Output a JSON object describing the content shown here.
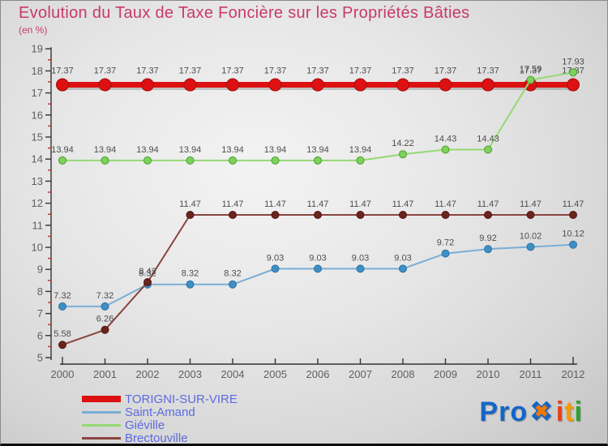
{
  "title": "Evolution du Taux de Taxe Foncière sur les Propriétés Bâties",
  "subtitle": "(en %)",
  "colors": {
    "title": "#c83a68",
    "legend_text": "#5b6be0",
    "axis": "#333333",
    "tick_label": "#5f5f5f",
    "minor_tick": "#bb3333",
    "value_label": "#4d4d4d"
  },
  "chart_data": {
    "type": "line",
    "title": "Evolution du Taux de Taxe Foncière sur les Propriétés Bâties",
    "ylabel": "en %",
    "xlabel": "",
    "ylim": [
      5,
      19
    ],
    "y_major_step": 1,
    "y_minor_step": 0.5,
    "grid": false,
    "legend_position": "bottom-left",
    "x": [
      2000,
      2001,
      2002,
      2003,
      2004,
      2005,
      2006,
      2007,
      2008,
      2009,
      2010,
      2011,
      2012
    ],
    "series": [
      {
        "name": "TORIGNI-SUR-VIRE",
        "color": "#dd1111",
        "dot_color": "#dd1111",
        "dot_stroke": "#a80d0d",
        "line_width": 7,
        "dot_radius": 7.5,
        "label_dy": 14,
        "values": [
          17.37,
          17.37,
          17.37,
          17.37,
          17.37,
          17.37,
          17.37,
          17.37,
          17.37,
          17.37,
          17.37,
          17.37,
          17.37
        ]
      },
      {
        "name": "Saint-Amand",
        "color": "#7aaed6",
        "dot_color": "#3f8fc7",
        "dot_stroke": "#2f70a0",
        "line_width": 2,
        "dot_radius": 4.5,
        "label_dy": 10,
        "values": [
          7.32,
          7.32,
          8.32,
          8.32,
          8.32,
          9.03,
          9.03,
          9.03,
          9.03,
          9.72,
          9.92,
          10.02,
          10.12
        ]
      },
      {
        "name": "Giéville",
        "color": "#94d973",
        "dot_color": "#7ed25b",
        "dot_stroke": "#4a9e2e",
        "line_width": 2,
        "dot_radius": 4.5,
        "label_dy": 10,
        "values": [
          13.94,
          13.94,
          13.94,
          13.94,
          13.94,
          13.94,
          13.94,
          13.94,
          14.22,
          14.43,
          14.43,
          17.59,
          17.93
        ]
      },
      {
        "name": "Brectouville",
        "color": "#8a4540",
        "dot_color": "#6b241c",
        "dot_stroke": "#521712",
        "line_width": 2,
        "dot_radius": 4.5,
        "label_dy": 10,
        "values": [
          5.58,
          6.26,
          8.42,
          11.47,
          11.47,
          11.47,
          11.47,
          11.47,
          11.47,
          11.47,
          11.47,
          11.47,
          11.47
        ]
      }
    ]
  },
  "legend": {
    "items": [
      {
        "label": "TORIGNI-SUR-VIRE",
        "color": "#dd1111",
        "thickness": 8
      },
      {
        "label": "Saint-Amand",
        "color": "#7aaed6",
        "thickness": 3
      },
      {
        "label": "Giéville",
        "color": "#94d973",
        "thickness": 3
      },
      {
        "label": "Brectouville",
        "color": "#8a4540",
        "thickness": 3
      }
    ]
  },
  "logo": {
    "text": "Proxiti",
    "letters": [
      {
        "ch": "P",
        "color": "#1565c8"
      },
      {
        "ch": "r",
        "color": "#1565c8"
      },
      {
        "ch": "o",
        "color": "#1565c8"
      },
      {
        "ch": "✖",
        "color": "#f07800",
        "special": "x-mark",
        "base_color": "#1565c8"
      },
      {
        "ch": "i",
        "color": "#e8401a"
      },
      {
        "ch": "t",
        "color": "#f59b00"
      },
      {
        "ch": "i",
        "color": "#2fa02f"
      }
    ]
  }
}
